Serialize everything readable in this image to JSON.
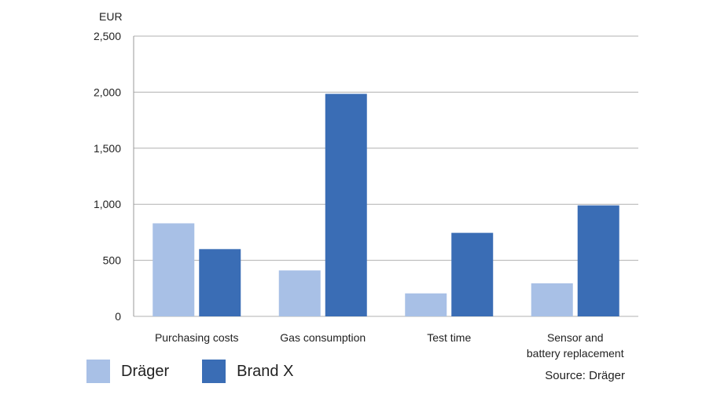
{
  "chart_data": {
    "type": "bar",
    "unit_label": "EUR",
    "categories": [
      [
        "Purchasing costs"
      ],
      [
        "Gas consumption"
      ],
      [
        "Test time"
      ],
      [
        "Sensor and",
        "battery replacement"
      ]
    ],
    "series": [
      {
        "name": "Dräger",
        "color": "#a8c0e6",
        "values": [
          830,
          410,
          205,
          295
        ]
      },
      {
        "name": "Brand X",
        "color": "#3a6db5",
        "values": [
          600,
          1985,
          745,
          990
        ]
      }
    ],
    "ylim": [
      0,
      2500
    ],
    "yticks": [
      0,
      500,
      1000,
      1500,
      2000,
      2500
    ],
    "ytick_labels": [
      "0",
      "500",
      "1,000",
      "1,500",
      "2,000",
      "2,500"
    ],
    "grid": true,
    "source": "Source: Dräger"
  }
}
